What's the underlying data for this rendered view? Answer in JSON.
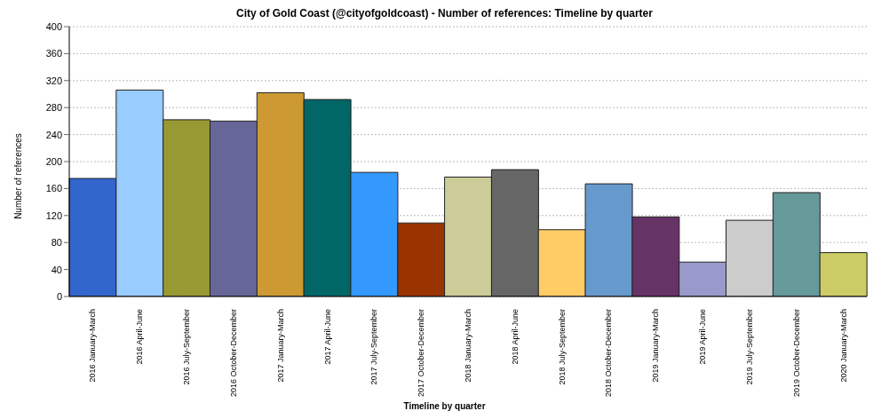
{
  "chart_data": {
    "type": "bar",
    "title": "City of Gold Coast (@cityofgoldcoast) - Number of references: Timeline by quarter",
    "xlabel": "Timeline by quarter",
    "ylabel": "Number of references",
    "categories": [
      "2016 January-March",
      "2016 April-June",
      "2016 July-September",
      "2016 October-December",
      "2017 January-March",
      "2017 April-June",
      "2017 July-September",
      "2017 October-December",
      "2018 January-March",
      "2018 April-June",
      "2018 July-September",
      "2018 October-December",
      "2019 January-March",
      "2019 April-June",
      "2019 July-September",
      "2019 October-December",
      "2020 January-March"
    ],
    "values": [
      175,
      306,
      262,
      260,
      302,
      292,
      184,
      109,
      177,
      188,
      99,
      167,
      118,
      51,
      113,
      154,
      65
    ],
    "colors": [
      "#3366cc",
      "#99ccff",
      "#999933",
      "#666699",
      "#cc9933",
      "#006666",
      "#3399ff",
      "#993300",
      "#cccc99",
      "#666666",
      "#ffcc66",
      "#6699cc",
      "#663366",
      "#9999cc",
      "#cccccc",
      "#669999",
      "#cccc66"
    ],
    "ylim": [
      0,
      400
    ],
    "yticks": [
      0,
      40,
      80,
      120,
      160,
      200,
      240,
      280,
      320,
      360,
      400
    ],
    "grid": "y"
  }
}
